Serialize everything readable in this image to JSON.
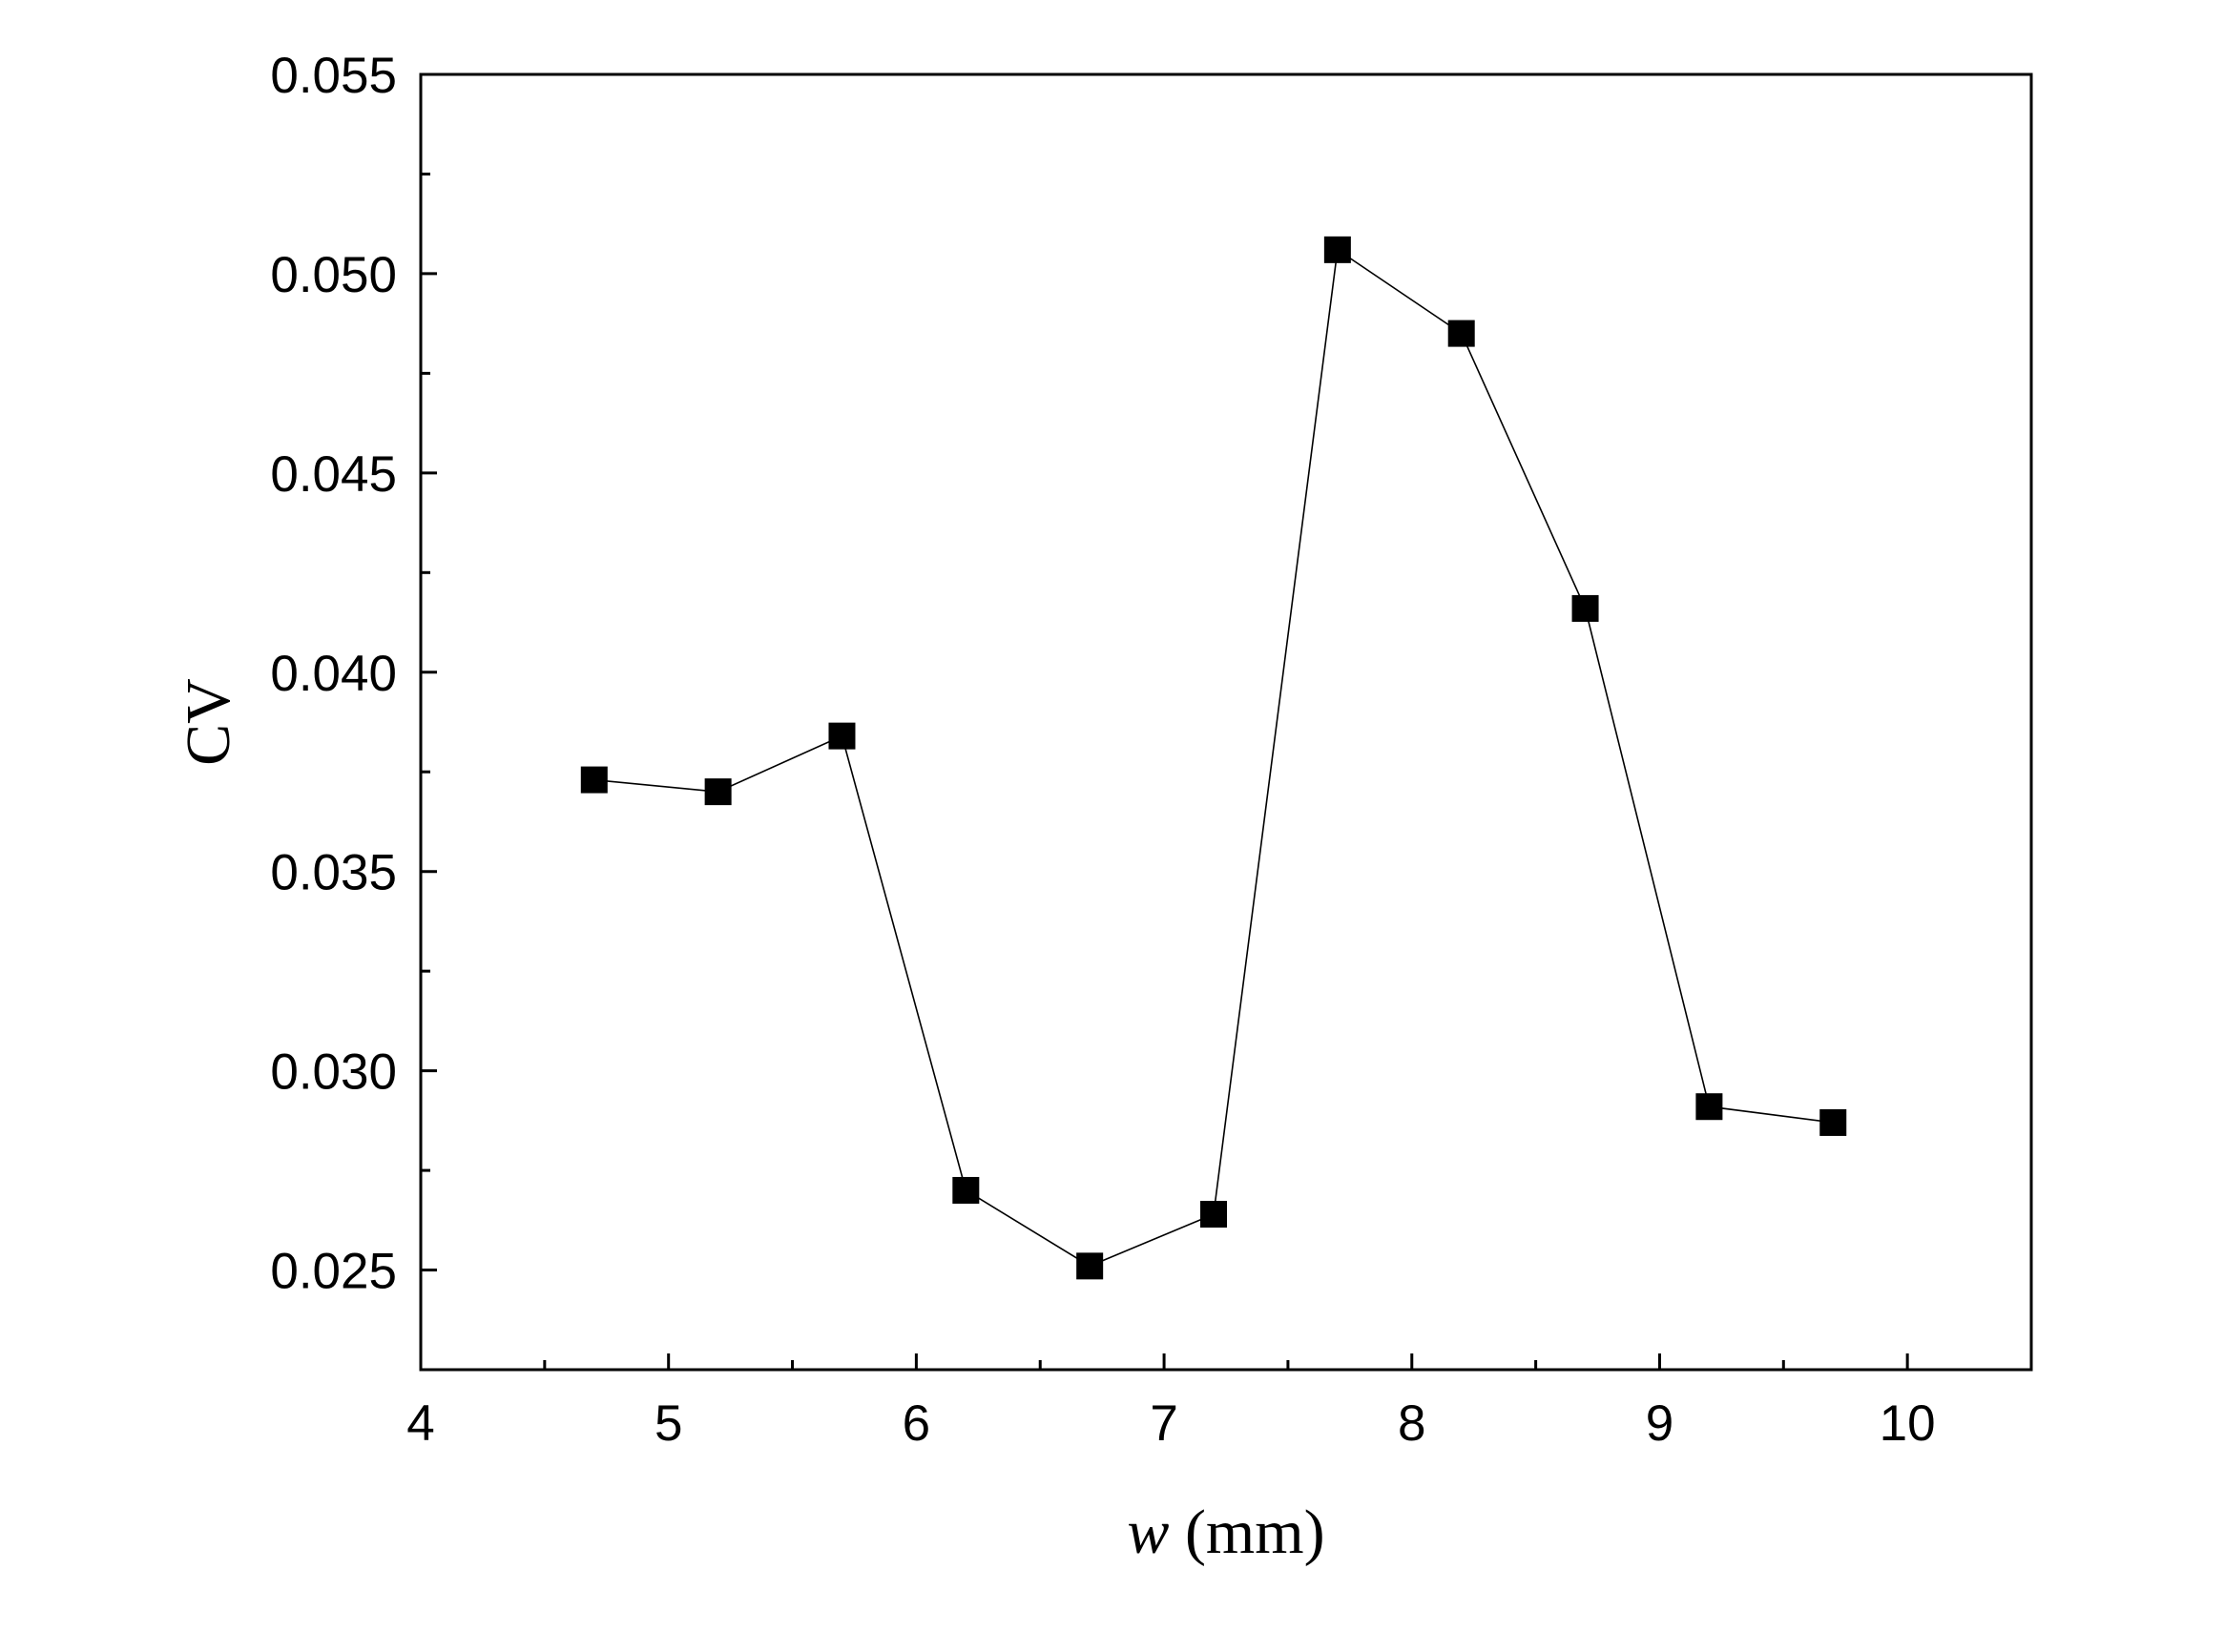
{
  "chart_data": {
    "type": "line",
    "xlabel": {
      "var": "w",
      "unit": " (mm)"
    },
    "ylabel": "CV",
    "xlim": [
      4,
      10.5
    ],
    "ylim": [
      0.0225,
      0.055
    ],
    "x_ticks": [
      4,
      5,
      6,
      7,
      8,
      9,
      10
    ],
    "x_minor_ticks": [
      4.5,
      5.5,
      6.5,
      7.5,
      8.5,
      9.5
    ],
    "y_ticks": [
      "0.025",
      "0.030",
      "0.035",
      "0.040",
      "0.045",
      "0.050",
      "0.055"
    ],
    "y_minor_ticks": [
      0.0275,
      0.0325,
      0.0375,
      0.0425,
      0.0475,
      0.0525
    ],
    "grid": false,
    "marker": "filled-square",
    "line_color": "#000000",
    "series": [
      {
        "x": [
          4.7,
          5.2,
          5.7,
          6.2,
          6.7,
          7.2,
          7.7,
          8.2,
          8.7,
          9.2,
          9.7
        ],
        "y": [
          0.0373,
          0.037,
          0.0384,
          0.027,
          0.0251,
          0.0264,
          0.0506,
          0.0485,
          0.0416,
          0.0291,
          0.0287
        ]
      }
    ]
  }
}
